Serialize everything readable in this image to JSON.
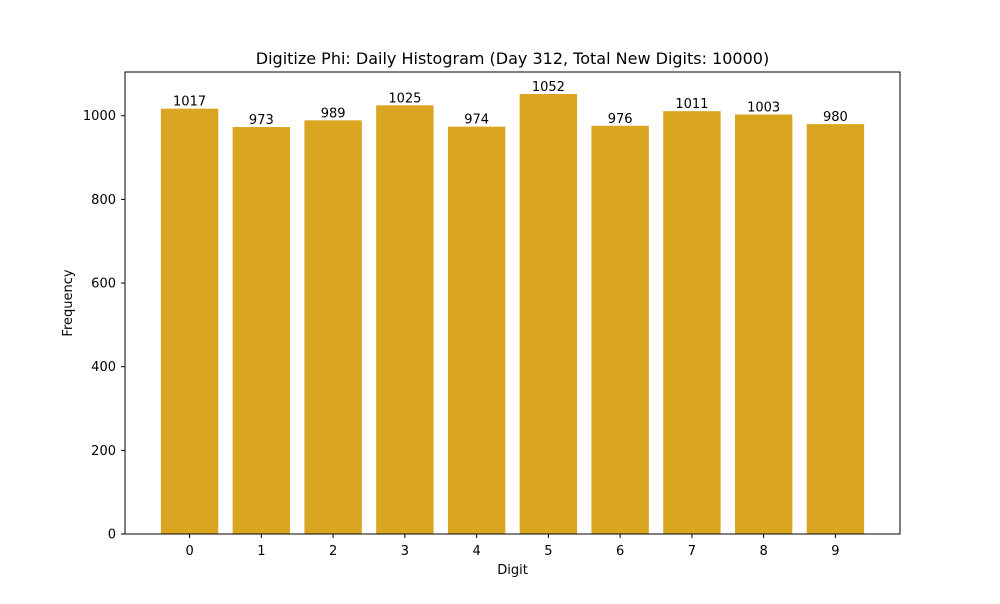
{
  "chart_data": {
    "type": "bar",
    "title": "Digitize Phi: Daily Histogram (Day 312, Total New Digits: 10000)",
    "xlabel": "Digit",
    "ylabel": "Frequency",
    "categories": [
      "0",
      "1",
      "2",
      "3",
      "4",
      "5",
      "6",
      "7",
      "8",
      "9"
    ],
    "values": [
      1017,
      973,
      989,
      1025,
      974,
      1052,
      976,
      1011,
      1003,
      980
    ],
    "ylim": [
      0,
      1104.6
    ],
    "yticks": [
      0,
      200,
      400,
      600,
      800,
      1000
    ],
    "bar_color": "#DAA520",
    "grid": false,
    "legend": "none"
  }
}
